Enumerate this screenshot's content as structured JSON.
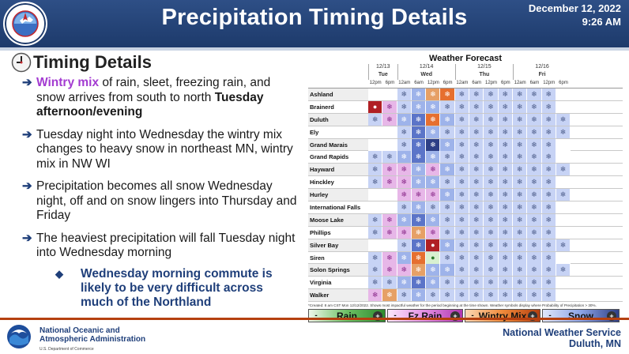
{
  "header": {
    "title": "Precipitation Timing Details",
    "date": "December 12, 2022",
    "time": "9:26 AM",
    "logo_ring_text": "NATIONAL WEATHER SERVICE"
  },
  "section": {
    "title": "Timing Details",
    "icon": "clock-icon"
  },
  "bullets": [
    {
      "lead": "Wintry mix",
      "text": " of rain, sleet, freezing rain, and snow arrives from south to north ",
      "bold_tail": "Tuesday afternoon/evening"
    },
    {
      "text": "Tuesday night into Wednesday the wintry mix changes to heavy snow in northeast MN, wintry mix in NW WI"
    },
    {
      "text": "Precipitation becomes all snow Wednesday night, off and on snow lingers into Thursday and Friday"
    },
    {
      "text": "The heaviest precipitation will fall Tuesday night into Wednesday morning"
    }
  ],
  "sub_bullet": "Wednesday morning commute is likely to be very difficult across much of the Northland",
  "forecast": {
    "title": "Weather Forecast",
    "days": [
      {
        "date": "12/13",
        "day": "Tue"
      },
      {
        "date": "12/14",
        "day": "Wed"
      },
      {
        "date": "12/15",
        "day": "Thu"
      },
      {
        "date": "12/16",
        "day": "Fri"
      }
    ],
    "hours": [
      "12pm",
      "6pm",
      "12am",
      "6am",
      "12pm",
      "6pm",
      "12am",
      "6am",
      "12pm",
      "6pm",
      "12am",
      "6am",
      "12pm",
      "6pm"
    ],
    "locations": [
      {
        "name": "Ashland",
        "cells": [
          "none",
          "none",
          "snow1",
          "snow2",
          "mix2",
          "mix3",
          "snow1",
          "snow1",
          "snow1",
          "snow1",
          "snow1",
          "snow1",
          "snow1",
          "none"
        ]
      },
      {
        "name": "Brainerd",
        "cells": [
          "red",
          "mix1",
          "snow1",
          "snow2",
          "snow2",
          "snow1",
          "snow1",
          "snow1",
          "snow1",
          "snow1",
          "snow1",
          "snow1",
          "snow1",
          "none"
        ]
      },
      {
        "name": "Duluth",
        "cells": [
          "snow1",
          "mix1",
          "snow2",
          "snow3",
          "mix3",
          "snow2",
          "snow1",
          "snow1",
          "snow1",
          "snow1",
          "snow1",
          "snow1",
          "snow1",
          "snow1"
        ]
      },
      {
        "name": "Ely",
        "cells": [
          "none",
          "none",
          "snow1",
          "snow3",
          "snow2",
          "snow1",
          "snow1",
          "snow1",
          "snow1",
          "snow1",
          "snow1",
          "snow1",
          "snow1",
          "snow1"
        ]
      },
      {
        "name": "Grand Marais",
        "cells": [
          "none",
          "none",
          "snow1",
          "snow3",
          "snow4",
          "snow2",
          "snow1",
          "snow1",
          "snow1",
          "snow1",
          "snow1",
          "snow1",
          "snow1",
          "none"
        ]
      },
      {
        "name": "Grand Rapids",
        "cells": [
          "snow1",
          "snow1",
          "snow2",
          "snow3",
          "snow2",
          "snow1",
          "snow1",
          "snow1",
          "snow1",
          "snow1",
          "snow1",
          "snow1",
          "snow1",
          "none"
        ]
      },
      {
        "name": "Hayward",
        "cells": [
          "snow1",
          "mix1",
          "mix1",
          "snow2",
          "mix1",
          "snow2",
          "snow1",
          "snow1",
          "snow1",
          "snow1",
          "snow1",
          "snow1",
          "snow1",
          "snow1"
        ]
      },
      {
        "name": "Hinckley",
        "cells": [
          "snow1",
          "mix1",
          "mix1",
          "snow2",
          "snow2",
          "snow1",
          "snow1",
          "snow1",
          "snow1",
          "snow1",
          "snow1",
          "snow1",
          "snow1",
          "none"
        ]
      },
      {
        "name": "Hurley",
        "cells": [
          "none",
          "none",
          "mix1",
          "mix1",
          "mix1",
          "snow2",
          "snow1",
          "snow1",
          "snow1",
          "snow1",
          "snow1",
          "snow1",
          "snow1",
          "snow1"
        ]
      },
      {
        "name": "International Falls",
        "cells": [
          "none",
          "none",
          "snow1",
          "snow2",
          "snow1",
          "snow1",
          "snow1",
          "snow1",
          "snow1",
          "snow1",
          "snow1",
          "snow1",
          "snow1",
          "none"
        ]
      },
      {
        "name": "Moose Lake",
        "cells": [
          "snow1",
          "mix1",
          "snow2",
          "snow3",
          "snow2",
          "snow1",
          "snow1",
          "snow1",
          "snow1",
          "snow1",
          "snow1",
          "snow1",
          "snow1",
          "none"
        ]
      },
      {
        "name": "Phillips",
        "cells": [
          "snow1",
          "mix1",
          "mix1",
          "mix2",
          "mix1",
          "snow1",
          "snow1",
          "snow1",
          "snow1",
          "snow1",
          "snow1",
          "snow1",
          "snow1",
          "none"
        ]
      },
      {
        "name": "Silver Bay",
        "cells": [
          "none",
          "none",
          "snow1",
          "snow3",
          "red",
          "snow2",
          "snow1",
          "snow1",
          "snow1",
          "snow1",
          "snow1",
          "snow1",
          "snow1",
          "snow1"
        ]
      },
      {
        "name": "Siren",
        "cells": [
          "snow1",
          "mix1",
          "snow2",
          "mix3",
          "rain2",
          "snow1",
          "snow1",
          "snow1",
          "snow1",
          "snow1",
          "snow1",
          "snow1",
          "snow1",
          "none"
        ]
      },
      {
        "name": "Solon Springs",
        "cells": [
          "snow1",
          "mix1",
          "mix1",
          "mix2",
          "snow2",
          "snow2",
          "snow1",
          "snow1",
          "snow1",
          "snow1",
          "snow1",
          "snow1",
          "snow1",
          "snow1"
        ]
      },
      {
        "name": "Virginia",
        "cells": [
          "snow1",
          "snow1",
          "snow2",
          "snow3",
          "snow2",
          "snow1",
          "snow1",
          "snow1",
          "snow1",
          "snow1",
          "snow1",
          "snow1",
          "snow1",
          "none"
        ]
      },
      {
        "name": "Walker",
        "cells": [
          "mix1",
          "mix2",
          "snow1",
          "snow2",
          "snow1",
          "snow1",
          "snow1",
          "snow1",
          "snow1",
          "snow1",
          "snow1",
          "snow1",
          "snow1",
          "none"
        ]
      }
    ],
    "footnote": "*Created: 8 am CST Mon 12/12/2022. Shows most impactful weather for the period beginning at the time shown. Weather symbols display where Probability of Precipitation > 30%.",
    "legend": [
      {
        "label": "Rain",
        "key": "rain"
      },
      {
        "label": "Fz Rain",
        "key": "fz"
      },
      {
        "label": "Wintry Mix",
        "key": "wm"
      },
      {
        "label": "Snow",
        "key": "snow"
      }
    ],
    "legend_minus": "-",
    "legend_plus": "+"
  },
  "footer": {
    "noaa_line1": "National Oceanic and",
    "noaa_line2": "Atmospheric Administration",
    "noaa_sub": "U.S. Department of Commerce",
    "nws_line1": "National Weather Service",
    "nws_line2": "Duluth, MN"
  }
}
